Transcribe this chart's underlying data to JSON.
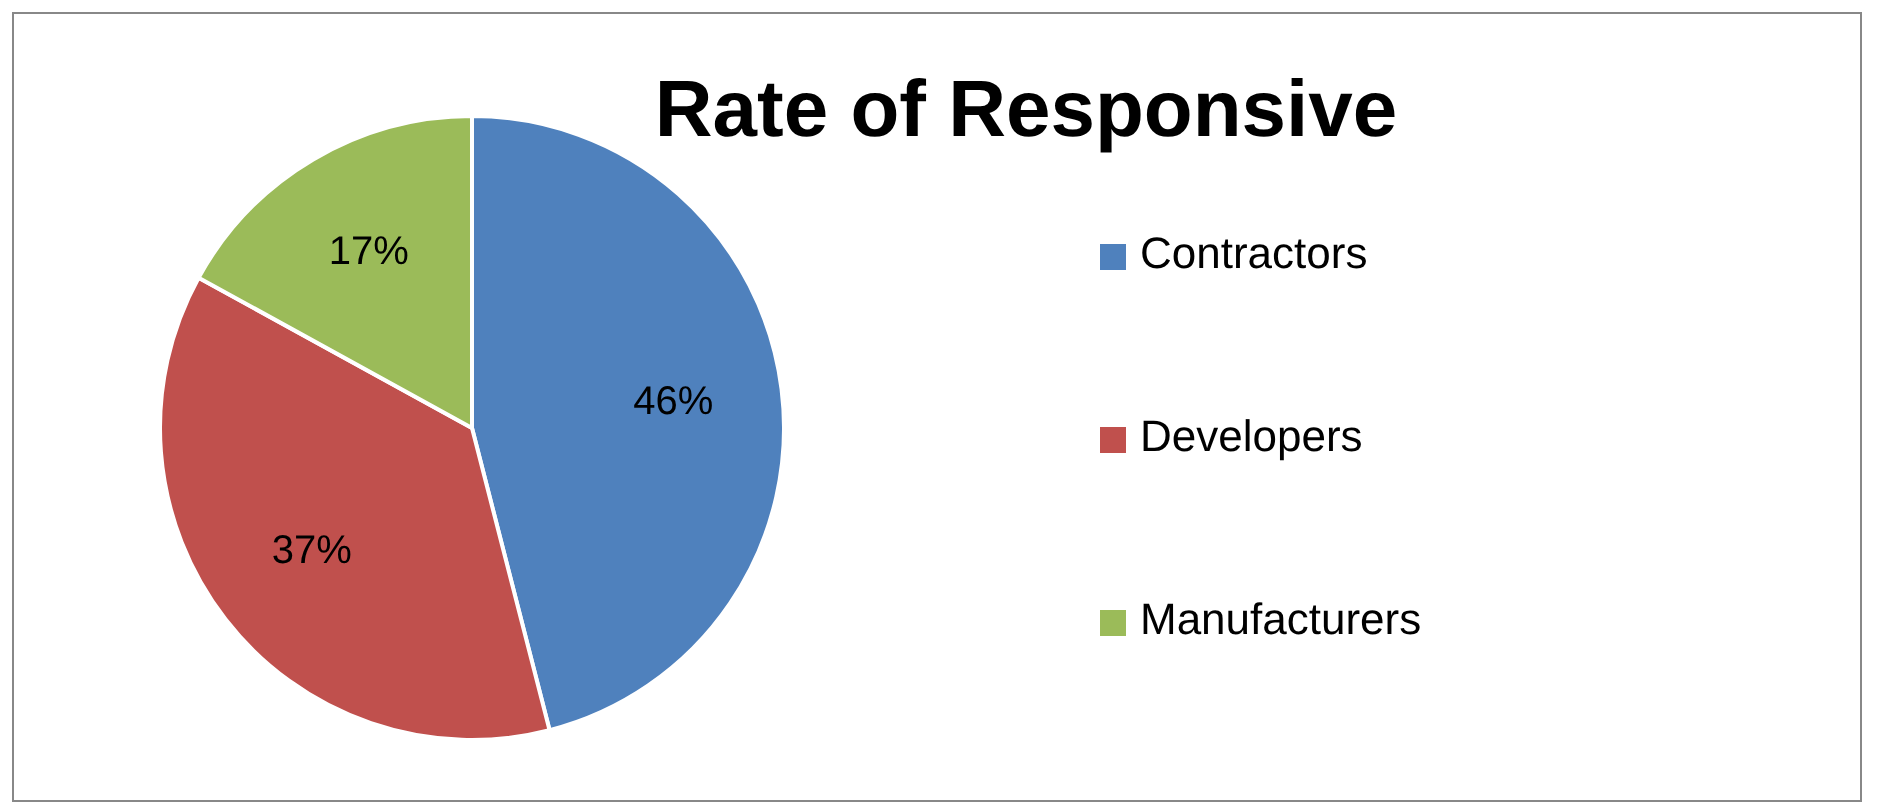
{
  "chart_data": {
    "type": "pie",
    "title": "Rate of Responsive",
    "categories": [
      "Contractors",
      "Developers",
      "Manufacturers"
    ],
    "values": [
      46,
      37,
      17
    ],
    "colors": [
      "#4f81bd",
      "#c0504d",
      "#9bbb59"
    ],
    "value_labels": [
      "46%",
      "37%",
      "17%"
    ],
    "legend": "right"
  }
}
